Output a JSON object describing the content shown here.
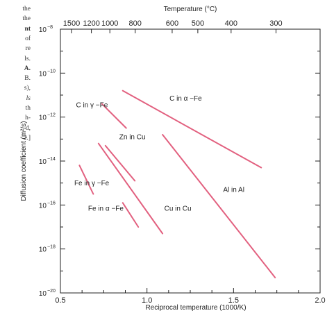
{
  "caption": {
    "lines": [
      {
        "text": "the",
        "style": "normal"
      },
      {
        "text": "the",
        "style": "normal"
      },
      {
        "text": "nt",
        "style": "bold"
      },
      {
        "text": "of",
        "style": "normal"
      },
      {
        "text": "re",
        "style": "normal"
      },
      {
        "text": "ls.",
        "style": "normal"
      },
      {
        "text": "A.",
        "style": "bold"
      },
      {
        "text": "B.",
        "style": "normal"
      },
      {
        "text": "s),",
        "style": "normal"
      },
      {
        "text": "ls",
        "style": "italic"
      },
      {
        "text": "th",
        "style": "normal"
      },
      {
        "text": "h-",
        "style": "normal"
      },
      {
        "text": "d,",
        "style": "normal"
      },
      {
        "text": "2.]",
        "style": "normal"
      }
    ]
  },
  "chart_data": {
    "type": "line",
    "xlabel": "Reciprocal temperature (1000/K)",
    "ylabel": "Diffusion coefficient (m²/s)",
    "top_axis_label": "Temperature (°C)",
    "xlim": [
      0.5,
      2.0
    ],
    "ylim_exponent": [
      -20,
      -8
    ],
    "x_ticks": [
      {
        "value": 0.5,
        "label": "0.5"
      },
      {
        "value": 1.0,
        "label": "1.0"
      },
      {
        "value": 1.5,
        "label": "1.5"
      },
      {
        "value": 2.0,
        "label": "2.0"
      }
    ],
    "y_ticks": [
      {
        "exp": -8,
        "base": "10",
        "sup": "−8"
      },
      {
        "exp": -10,
        "base": "10",
        "sup": "−10"
      },
      {
        "exp": -12,
        "base": "10",
        "sup": "−12"
      },
      {
        "exp": -14,
        "base": "10",
        "sup": "−14"
      },
      {
        "exp": -16,
        "base": "10",
        "sup": "−16"
      },
      {
        "exp": -18,
        "base": "10",
        "sup": "−18"
      },
      {
        "exp": -20,
        "base": "10",
        "sup": "−20"
      }
    ],
    "top_ticks": [
      {
        "celsius": 1500,
        "label": "1500"
      },
      {
        "celsius": 1200,
        "label": "1200"
      },
      {
        "celsius": 1000,
        "label": "1000"
      },
      {
        "celsius": 800,
        "label": "800"
      },
      {
        "celsius": 600,
        "label": "600"
      },
      {
        "celsius": 500,
        "label": "500"
      },
      {
        "celsius": 400,
        "label": "400"
      },
      {
        "celsius": 300,
        "label": "300"
      }
    ],
    "grid": false,
    "line_color": "#e2607f",
    "series": [
      {
        "label": "C in α −Fe",
        "points": [
          [
            0.86,
            -10.8
          ],
          [
            1.66,
            -14.3
          ]
        ]
      },
      {
        "label": "C in γ −Fe",
        "points": [
          [
            0.74,
            -11.4
          ],
          [
            0.88,
            -12.5
          ]
        ]
      },
      {
        "label": "Zn in Cu",
        "points": [
          [
            0.76,
            -13.3
          ],
          [
            0.93,
            -14.9
          ]
        ]
      },
      {
        "label": "Fe in γ −Fe",
        "points": [
          [
            0.61,
            -14.2
          ],
          [
            0.69,
            -15.5
          ]
        ]
      },
      {
        "label": "Fe in α −Fe",
        "points": [
          [
            0.86,
            -15.9
          ],
          [
            0.95,
            -17.0
          ]
        ]
      },
      {
        "label": "Cu in Cu",
        "points": [
          [
            0.72,
            -13.2
          ],
          [
            1.09,
            -17.3
          ]
        ]
      },
      {
        "label": "Al in Al",
        "points": [
          [
            1.09,
            -12.8
          ],
          [
            1.74,
            -19.3
          ]
        ]
      }
    ]
  }
}
